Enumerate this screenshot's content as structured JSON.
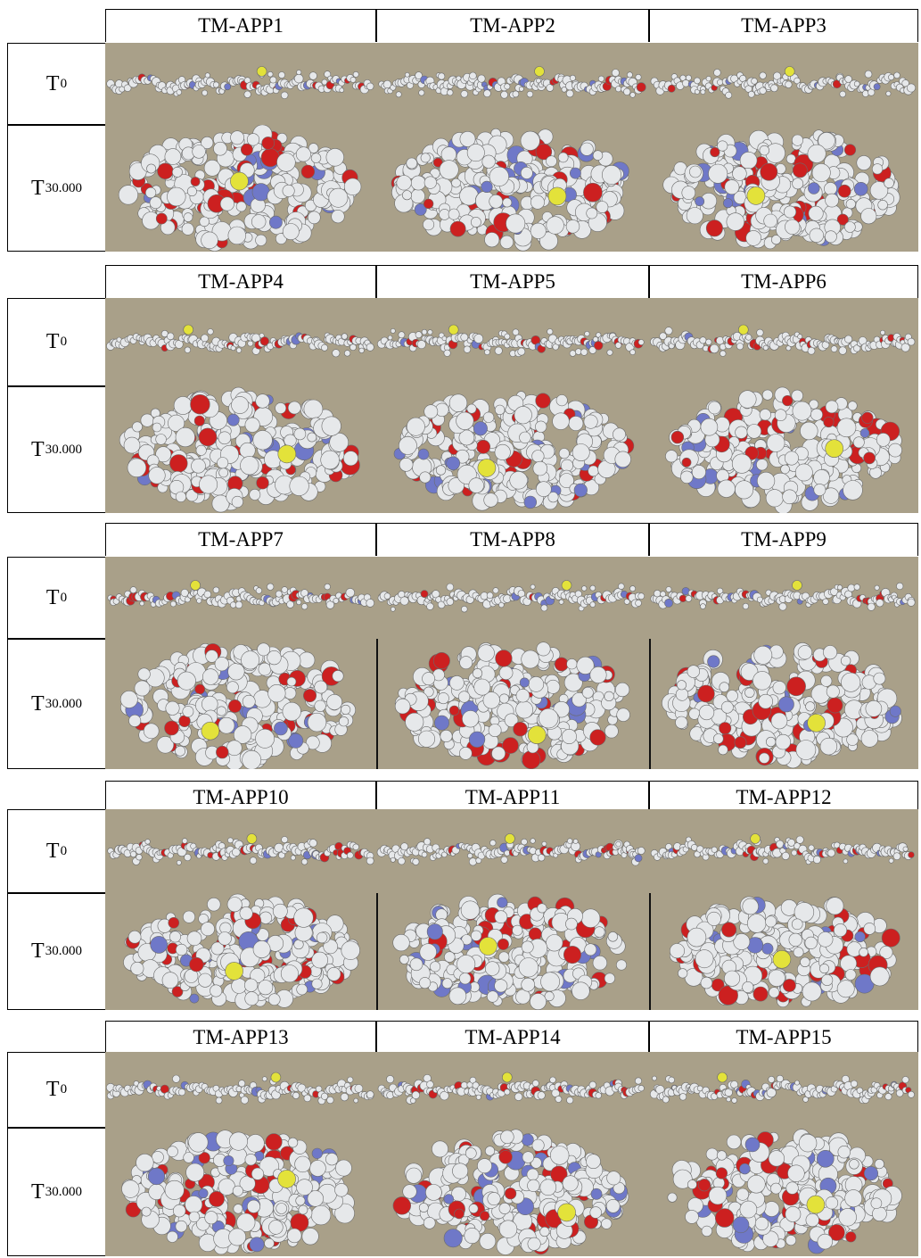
{
  "row_labels": {
    "t0": "T",
    "t0_sub": "0",
    "t30": "T",
    "t30_sub": "30.000"
  },
  "groups": [
    {
      "columns": [
        "TM-APP1",
        "TM-APP2",
        "TM-APP3"
      ]
    },
    {
      "columns": [
        "TM-APP4",
        "TM-APP5",
        "TM-APP6"
      ]
    },
    {
      "columns": [
        "TM-APP7",
        "TM-APP8",
        "TM-APP9"
      ]
    },
    {
      "columns": [
        "TM-APP10",
        "TM-APP11",
        "TM-APP12"
      ]
    },
    {
      "columns": [
        "TM-APP13",
        "TM-APP14",
        "TM-APP15"
      ]
    }
  ],
  "colors": {
    "background": "#a9a089",
    "atom_white": "#e6e8ea",
    "atom_red": "#cc2020",
    "atom_blue": "#6f78c8",
    "atom_yellow": "#e3e23a"
  }
}
